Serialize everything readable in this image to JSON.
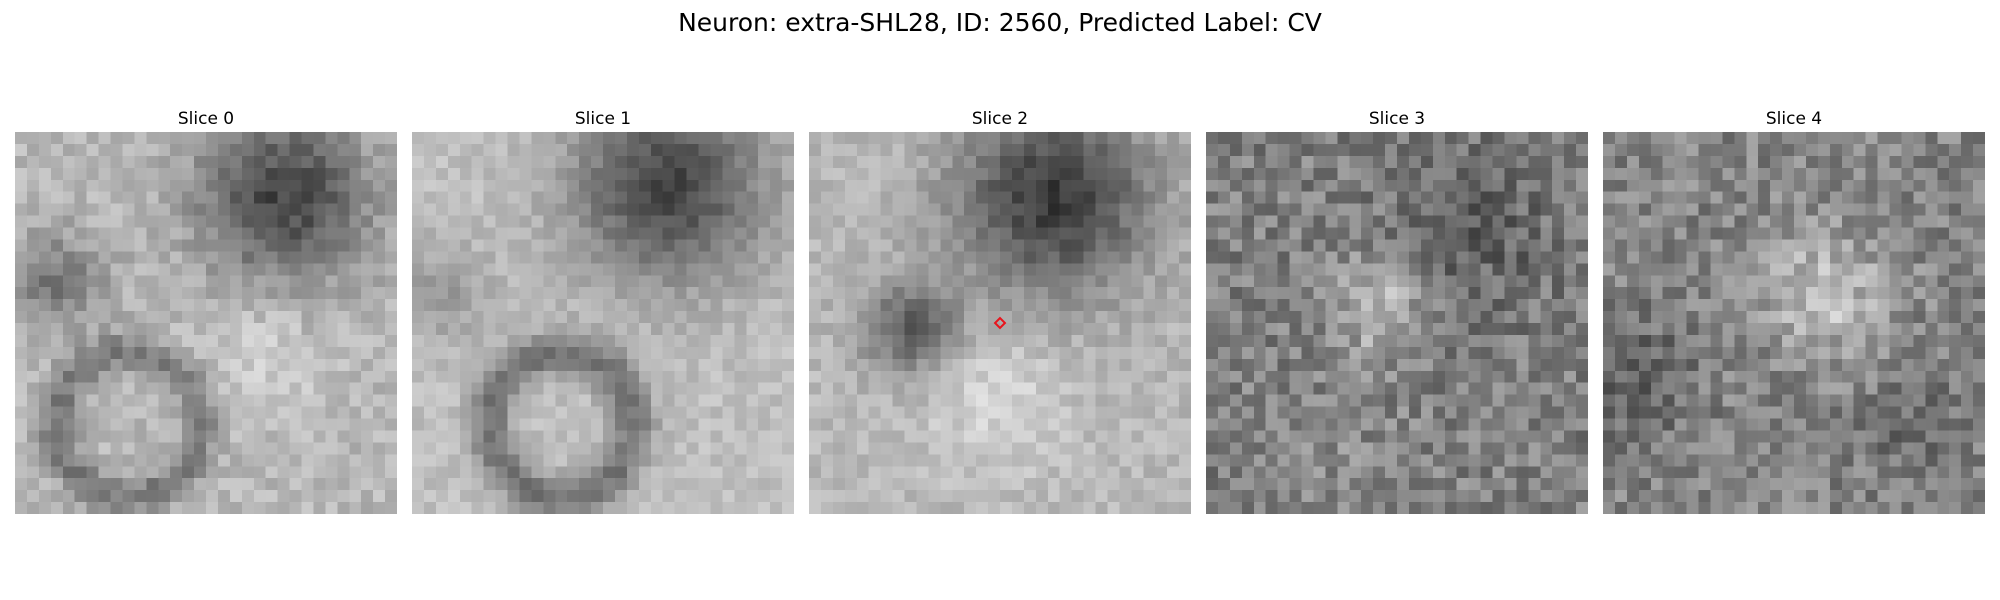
{
  "figure": {
    "title": "Neuron: extra-SHL28, ID: 2560, Predicted Label: CV"
  },
  "slices": [
    {
      "label": "Slice 0"
    },
    {
      "label": "Slice 1"
    },
    {
      "label": "Slice 2"
    },
    {
      "label": "Slice 3"
    },
    {
      "label": "Slice 4"
    }
  ],
  "colormap": "gray",
  "marker_color": "#e8141c",
  "marker_icon": "red-diamond-marker-icon"
}
